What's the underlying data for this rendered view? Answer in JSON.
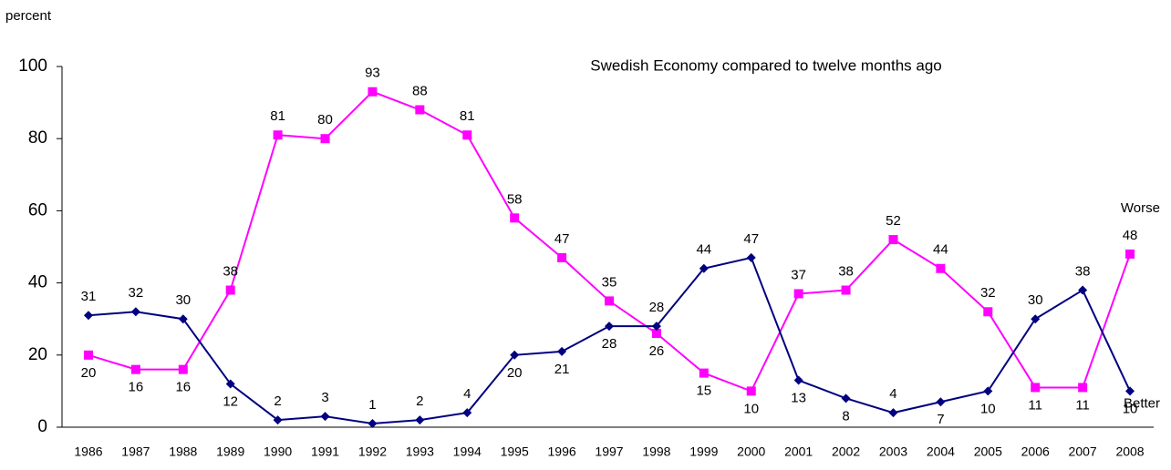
{
  "chart_data": {
    "type": "line",
    "title": "Swedish Economy compared to twelve months ago",
    "y_label": "percent",
    "categories": [
      "1986",
      "1987",
      "1988",
      "1989",
      "1990",
      "1991",
      "1992",
      "1993",
      "1994",
      "1995",
      "1996",
      "1997",
      "1998",
      "1999",
      "2000",
      "2001",
      "2002",
      "2003",
      "2004",
      "2005",
      "2006",
      "2007",
      "2008"
    ],
    "series": [
      {
        "name": "Worse",
        "color": "#ff00ff",
        "marker": "square",
        "values": [
          20,
          16,
          16,
          38,
          81,
          80,
          93,
          88,
          81,
          58,
          47,
          35,
          26,
          15,
          10,
          37,
          38,
          52,
          44,
          32,
          11,
          11,
          48
        ]
      },
      {
        "name": "Better",
        "color": "#000080",
        "marker": "diamond",
        "values": [
          31,
          32,
          30,
          12,
          2,
          3,
          1,
          2,
          4,
          20,
          21,
          28,
          28,
          44,
          47,
          13,
          8,
          4,
          7,
          10,
          30,
          38,
          10
        ]
      }
    ],
    "ylim": [
      0,
      100
    ],
    "yticks": [
      0,
      20,
      40,
      60,
      80,
      100
    ]
  }
}
